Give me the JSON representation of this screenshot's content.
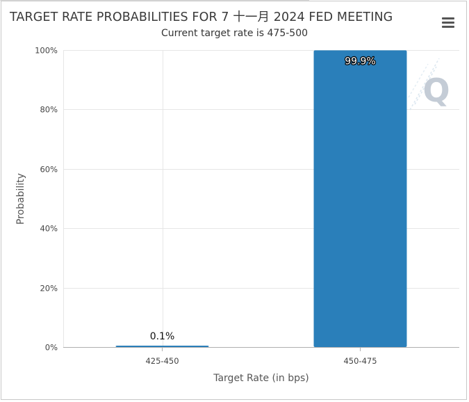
{
  "chart_data": {
    "type": "bar",
    "title": "TARGET RATE PROBABILITIES FOR 7 十一月 2024 FED MEETING",
    "subtitle": "Current target rate is 475-500",
    "xlabel": "Target Rate (in bps)",
    "ylabel": "Probability",
    "categories": [
      "425-450",
      "450-475"
    ],
    "values": [
      0.1,
      99.9
    ],
    "data_labels": [
      "0.1%",
      "99.9%"
    ],
    "ylim": [
      0,
      100
    ],
    "y_ticks": [
      0,
      20,
      40,
      60,
      80,
      100
    ],
    "y_tick_labels": [
      "0%",
      "20%",
      "40%",
      "60%",
      "80%",
      "100%"
    ],
    "grid": true,
    "legend": "none"
  },
  "colors": {
    "bar": "#2a7fba",
    "grid": "#e6e6e6",
    "axis": "#b0b0b0",
    "watermark": "#c4ccd6"
  },
  "watermark": {
    "letter": "Q"
  },
  "menu": {
    "icon": "hamburger-menu-icon"
  }
}
